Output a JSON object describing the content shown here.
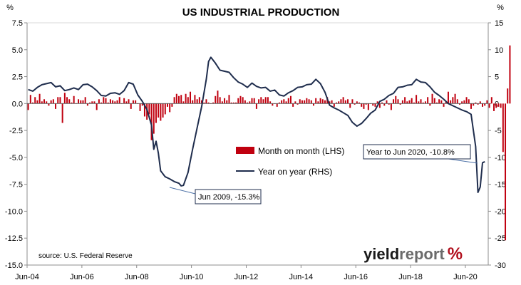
{
  "chart_data": {
    "type": "bar+line",
    "title": "US INDUSTRIAL PRODUCTION",
    "left_axis_unit": "%",
    "right_axis_unit": "%",
    "left_ylim": [
      -15.0,
      7.5
    ],
    "left_ticks": [
      "7.5",
      "5.0",
      "2.5",
      "0.0",
      "-2.5",
      "-5.0",
      "-7.5",
      "-10.0",
      "-12.5",
      "-15.0"
    ],
    "right_ylim": [
      -30,
      15
    ],
    "right_ticks": [
      "15",
      "10",
      "5",
      "0",
      "-5",
      "-10",
      "-15",
      "-20",
      "-25",
      "-30"
    ],
    "x_ticks": [
      "Jun-04",
      "Jun-06",
      "Jun-08",
      "Jun-10",
      "Jun-12",
      "Jun-14",
      "Jun-16",
      "Jun-18",
      "Jun-20"
    ],
    "source": "source: U.S. Federal Reserve",
    "logo": {
      "part1": "yield",
      "part2": "report",
      "part3": "%"
    },
    "series": [
      {
        "name": "Month on month (LHS)",
        "axis": "left",
        "color": "#c0000f",
        "note": "monthly values Jun-04 to Jun-20",
        "values": [
          -0.6,
          0.8,
          0.1,
          0.6,
          0.3,
          0.9,
          0.2,
          0.4,
          0.2,
          -0.2,
          0.3,
          0.4,
          -0.5,
          0.6,
          0.6,
          -1.8,
          1.0,
          0.6,
          0.4,
          0.1,
          0.7,
          0.0,
          0.4,
          0.3,
          0.3,
          0.6,
          -0.2,
          0.1,
          0.2,
          0.2,
          -0.6,
          0.4,
          0.1,
          0.6,
          0.5,
          0.1,
          0.4,
          0.3,
          0.2,
          0.3,
          0.6,
          0.0,
          0.5,
          0.2,
          0.4,
          -0.5,
          0.3,
          0.3,
          0.0,
          -0.7,
          -0.2,
          -1.2,
          -1.5,
          -1.0,
          -3.4,
          -2.8,
          -1.8,
          -1.3,
          -1.6,
          -1.3,
          -1.0,
          -0.3,
          -0.8,
          -0.3,
          0.6,
          0.9,
          0.7,
          0.8,
          0.2,
          0.9,
          0.6,
          1.1,
          0.3,
          0.8,
          0.4,
          0.6,
          0.3,
          0.1,
          0.4,
          0.1,
          0.0,
          0.1,
          0.7,
          1.2,
          0.6,
          0.2,
          0.5,
          0.3,
          0.8,
          0.1,
          0.1,
          0.1,
          0.5,
          0.7,
          0.6,
          0.3,
          0.1,
          0.2,
          0.5,
          0.5,
          -0.5,
          0.4,
          0.6,
          0.4,
          0.6,
          0.6,
          0.2,
          -0.2,
          0.0,
          -0.3,
          0.1,
          0.3,
          0.4,
          0.2,
          0.5,
          0.7,
          -0.3,
          0.2,
          -0.1,
          0.4,
          0.3,
          0.3,
          0.5,
          0.4,
          0.3,
          -0.2,
          0.5,
          0.2,
          0.5,
          0.4,
          0.3,
          0.6,
          0.2,
          0.3,
          -0.3,
          0.1,
          0.2,
          0.4,
          0.6,
          0.3,
          0.4,
          -0.4,
          0.4,
          -0.1,
          0.2,
          0.1,
          -0.3,
          -0.5,
          -0.1,
          -0.6,
          0.0,
          -0.2,
          -0.3,
          0.2,
          -0.4,
          0.1,
          -0.2,
          0.3,
          -0.1,
          -0.6,
          0.4,
          0.7,
          0.4,
          -0.1,
          0.3,
          0.6,
          0.2,
          0.3,
          0.5,
          0.1,
          0.8,
          0.2,
          0.4,
          0.1,
          0.2,
          0.6,
          -0.2,
          0.9,
          0.5,
          0.1,
          0.4,
          0.3,
          -0.3,
          0.2,
          1.1,
          0.3,
          0.6,
          0.9,
          0.4,
          -0.1,
          0.2,
          0.3,
          0.6,
          0.4,
          -0.5,
          -0.2,
          0.1,
          -0.1,
          0.2,
          -0.3,
          -0.2,
          0.3,
          -0.4,
          0.6,
          -0.7,
          -0.4,
          -0.3,
          -0.4,
          -4.5,
          -12.7,
          1.4,
          5.4
        ]
      },
      {
        "name": "Year on year (RHS)",
        "axis": "right",
        "color": "#1f2d4d",
        "note": "key points (monthly index from Jun-04, value %)",
        "points": [
          [
            0,
            2.6
          ],
          [
            2,
            2.3
          ],
          [
            4,
            3.0
          ],
          [
            6,
            3.5
          ],
          [
            8,
            3.7
          ],
          [
            10,
            3.9
          ],
          [
            12,
            3.1
          ],
          [
            14,
            3.3
          ],
          [
            16,
            2.4
          ],
          [
            18,
            2.6
          ],
          [
            20,
            2.9
          ],
          [
            22,
            2.6
          ],
          [
            24,
            3.5
          ],
          [
            26,
            3.6
          ],
          [
            28,
            3.1
          ],
          [
            30,
            2.4
          ],
          [
            32,
            1.5
          ],
          [
            34,
            1.4
          ],
          [
            36,
            1.9
          ],
          [
            38,
            2.0
          ],
          [
            40,
            1.7
          ],
          [
            42,
            2.4
          ],
          [
            44,
            3.9
          ],
          [
            46,
            3.6
          ],
          [
            48,
            1.6
          ],
          [
            50,
            0.4
          ],
          [
            52,
            -1.1
          ],
          [
            54,
            -4.0
          ],
          [
            55,
            -8.5
          ],
          [
            56,
            -7.0
          ],
          [
            57,
            -9.2
          ],
          [
            58,
            -12.5
          ],
          [
            60,
            -13.6
          ],
          [
            62,
            -14.0
          ],
          [
            64,
            -14.5
          ],
          [
            66,
            -14.8
          ],
          [
            67,
            -15.3
          ],
          [
            68,
            -15.2
          ],
          [
            70,
            -12.8
          ],
          [
            72,
            -8.5
          ],
          [
            74,
            -4.5
          ],
          [
            76,
            -0.5
          ],
          [
            78,
            4.5
          ],
          [
            79,
            7.8
          ],
          [
            80,
            8.6
          ],
          [
            82,
            7.5
          ],
          [
            84,
            6.2
          ],
          [
            86,
            6.0
          ],
          [
            88,
            5.8
          ],
          [
            90,
            4.8
          ],
          [
            92,
            4.0
          ],
          [
            94,
            3.6
          ],
          [
            96,
            3.0
          ],
          [
            98,
            3.8
          ],
          [
            100,
            3.2
          ],
          [
            102,
            2.9
          ],
          [
            104,
            3.0
          ],
          [
            106,
            2.3
          ],
          [
            108,
            2.5
          ],
          [
            110,
            1.6
          ],
          [
            112,
            1.4
          ],
          [
            114,
            2.0
          ],
          [
            116,
            2.4
          ],
          [
            118,
            3.0
          ],
          [
            120,
            3.1
          ],
          [
            122,
            3.5
          ],
          [
            124,
            3.6
          ],
          [
            126,
            4.5
          ],
          [
            128,
            3.7
          ],
          [
            130,
            2.1
          ],
          [
            132,
            -0.3
          ],
          [
            134,
            -0.8
          ],
          [
            136,
            -1.2
          ],
          [
            138,
            -1.7
          ],
          [
            140,
            -2.2
          ],
          [
            142,
            -3.5
          ],
          [
            144,
            -4.2
          ],
          [
            146,
            -3.7
          ],
          [
            148,
            -2.8
          ],
          [
            150,
            -1.8
          ],
          [
            152,
            -1.2
          ],
          [
            154,
            0.4
          ],
          [
            156,
            0.8
          ],
          [
            158,
            1.5
          ],
          [
            160,
            1.9
          ],
          [
            162,
            3.0
          ],
          [
            164,
            3.1
          ],
          [
            166,
            3.4
          ],
          [
            168,
            3.5
          ],
          [
            170,
            4.5
          ],
          [
            172,
            4.0
          ],
          [
            174,
            3.9
          ],
          [
            176,
            3.1
          ],
          [
            178,
            2.1
          ],
          [
            180,
            1.5
          ],
          [
            182,
            0.8
          ],
          [
            184,
            0.0
          ],
          [
            186,
            -0.4
          ],
          [
            188,
            -0.8
          ],
          [
            190,
            -1.2
          ],
          [
            192,
            -1.5
          ],
          [
            194,
            -2.0
          ],
          [
            195,
            -5.0
          ],
          [
            196,
            -8.0
          ],
          [
            197,
            -16.5
          ],
          [
            198,
            -15.5
          ],
          [
            199,
            -11.0
          ],
          [
            200,
            -10.8
          ]
        ]
      }
    ],
    "legend_placement": "center-right",
    "annotations": [
      {
        "text": "Jun 2009, -15.3%",
        "series_index": 1,
        "month": 60
      },
      {
        "text": "Year to Jun 2020, -10.8%",
        "series_index": 1,
        "month": 192
      }
    ],
    "grid": false
  }
}
